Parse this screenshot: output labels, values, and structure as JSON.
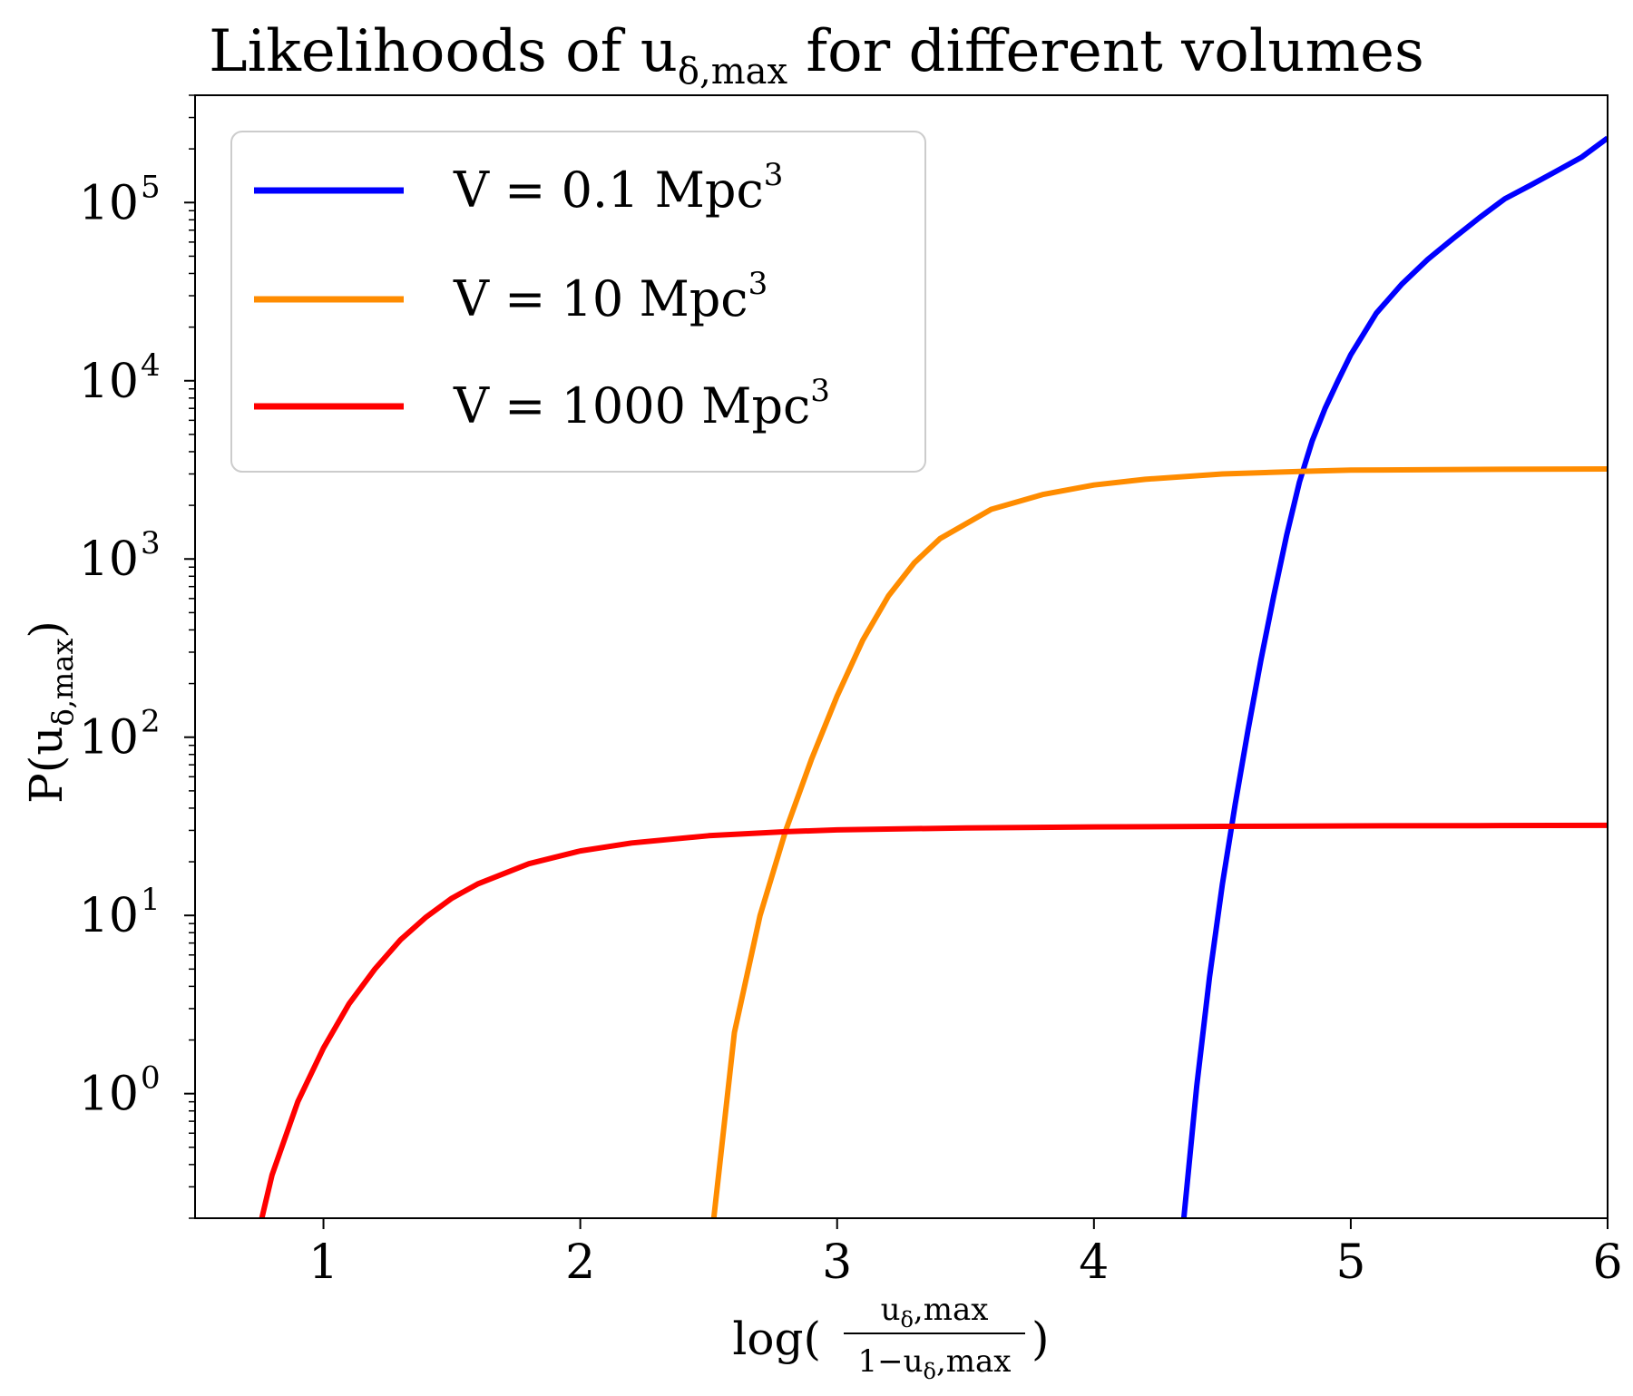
{
  "chart_data": {
    "type": "line",
    "title": "Likelihoods of u",
    "title_subscript": "δ,max",
    "title_suffix": " for different volumes",
    "xlabel": {
      "prefix": "log(",
      "numerator": "u",
      "numerator_sub": "δ",
      "numerator_suffix": ",max",
      "denominator": "1−u",
      "denominator_sub": "δ",
      "denominator_suffix": ",max",
      "suffix": ")"
    },
    "ylabel": {
      "prefix": "P(u",
      "sub": "δ,max",
      "suffix": ")"
    },
    "xlim": [
      0.5,
      6.0
    ],
    "ylim": [
      0.2,
      400000
    ],
    "yscale": "log",
    "xticks": [
      1,
      2,
      3,
      4,
      5,
      6
    ],
    "xtick_labels": [
      "1",
      "2",
      "3",
      "4",
      "5",
      "6"
    ],
    "yticks": [
      1,
      10,
      100,
      1000,
      10000,
      100000
    ],
    "ytick_bases": [
      "10",
      "10",
      "10",
      "10",
      "10",
      "10"
    ],
    "ytick_exponents": [
      "0",
      "1",
      "2",
      "3",
      "4",
      "5"
    ],
    "legend_position": "upper-left",
    "series": [
      {
        "name": "V = 0.1 Mpc",
        "name_sup": "3",
        "color": "#0000ff",
        "x": [
          4.35,
          4.4,
          4.45,
          4.5,
          4.55,
          4.6,
          4.65,
          4.7,
          4.75,
          4.8,
          4.85,
          4.9,
          4.95,
          5.0,
          5.1,
          5.2,
          5.3,
          5.4,
          5.5,
          5.6,
          5.7,
          5.8,
          5.9,
          6.0
        ],
        "y": [
          0.2,
          1.1,
          4.5,
          15,
          42,
          110,
          270,
          620,
          1350,
          2700,
          4600,
          7000,
          10000,
          14000,
          24000,
          35000,
          48000,
          63000,
          82000,
          105000,
          125000,
          150000,
          180000,
          230000
        ]
      },
      {
        "name": "V = 10 Mpc",
        "name_sup": "3",
        "color": "#ff8c00",
        "x": [
          2.52,
          2.6,
          2.7,
          2.8,
          2.9,
          3.0,
          3.1,
          3.2,
          3.3,
          3.4,
          3.6,
          3.8,
          4.0,
          4.2,
          4.5,
          4.8,
          5.0,
          5.5,
          6.0
        ],
        "y": [
          0.2,
          2.2,
          10,
          30,
          75,
          170,
          350,
          620,
          950,
          1300,
          1900,
          2300,
          2600,
          2800,
          3000,
          3100,
          3150,
          3180,
          3200
        ]
      },
      {
        "name": "V = 1000 Mpc",
        "name_sup": "3",
        "color": "#ff0000",
        "x": [
          0.76,
          0.8,
          0.9,
          1.0,
          1.1,
          1.2,
          1.3,
          1.4,
          1.5,
          1.6,
          1.8,
          2.0,
          2.2,
          2.5,
          2.8,
          3.0,
          3.5,
          4.0,
          4.5,
          5.0,
          5.5,
          6.0
        ],
        "y": [
          0.2,
          0.35,
          0.9,
          1.8,
          3.2,
          5.0,
          7.3,
          9.8,
          12.5,
          15,
          19.5,
          23,
          25.5,
          28,
          29.5,
          30.2,
          31,
          31.4,
          31.6,
          31.8,
          31.9,
          32
        ]
      }
    ]
  }
}
